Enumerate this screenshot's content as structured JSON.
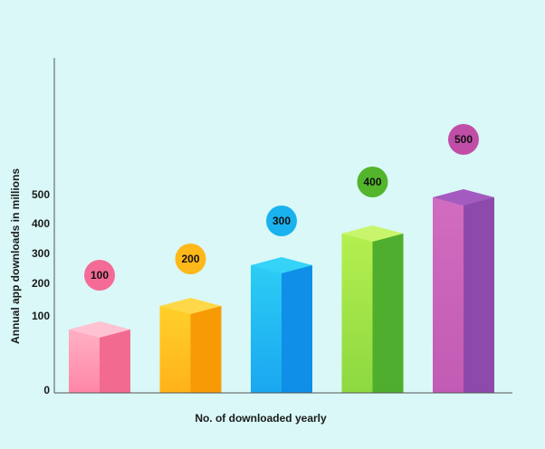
{
  "chart_data": {
    "type": "bar",
    "title": "",
    "xlabel": "No. of downloaded yearly",
    "ylabel": "Annual app downloads in millions",
    "y_ticks": [
      "0",
      "100",
      "200",
      "300",
      "400",
      "500"
    ],
    "series": [
      {
        "values": [
          100,
          200,
          300,
          400,
          500
        ],
        "labels": [
          "100",
          "200",
          "300",
          "400",
          "500"
        ]
      }
    ],
    "bar_colors": [
      {
        "front": "#ff86a8",
        "front_light": "#ffb0c4",
        "side": "#f26a90",
        "top": "#ffc2d2",
        "bubble": "#f46b97"
      },
      {
        "front": "#ffb21a",
        "front_light": "#ffd02a",
        "side": "#f79a06",
        "top": "#ffd84a",
        "bubble": "#ffb81a"
      },
      {
        "front": "#1aa7f0",
        "front_light": "#2ccdf5",
        "side": "#0f8fe8",
        "top": "#34d3f7",
        "bubble": "#1ab2ee"
      },
      {
        "front": "#8dd840",
        "front_light": "#b5ef50",
        "side": "#4fae2d",
        "top": "#c8f56b",
        "bubble": "#52b52c"
      },
      {
        "front": "#c25bb3",
        "front_light": "#d16cc0",
        "side": "#8e4aab",
        "top": "#a45bc0",
        "bubble": "#c04ea7"
      }
    ],
    "grid": false,
    "legend": "none"
  }
}
